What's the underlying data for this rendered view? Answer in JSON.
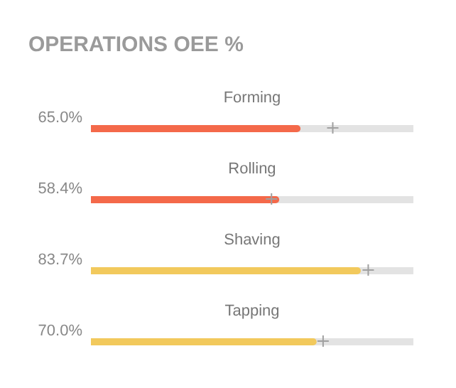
{
  "chart_data": {
    "type": "bar",
    "title": "OPERATIONS OEE %",
    "orientation": "horizontal",
    "categories": [
      "Forming",
      "Rolling",
      "Shaving",
      "Tapping"
    ],
    "xlim": [
      0,
      100
    ],
    "series": [
      {
        "values": [
          65.0,
          58.4,
          83.7,
          70.0
        ],
        "colors": [
          "#f4694a",
          "#f4694a",
          "#f2c95c",
          "#f2c95c"
        ],
        "value_labels": [
          "65.0%",
          "58.4%",
          "83.7%",
          "70.0%"
        ]
      },
      {
        "type": "scatter",
        "values": [
          75,
          56,
          86,
          72
        ],
        "color": "#a0a0a0",
        "marker": "cross"
      }
    ],
    "legend": false
  }
}
